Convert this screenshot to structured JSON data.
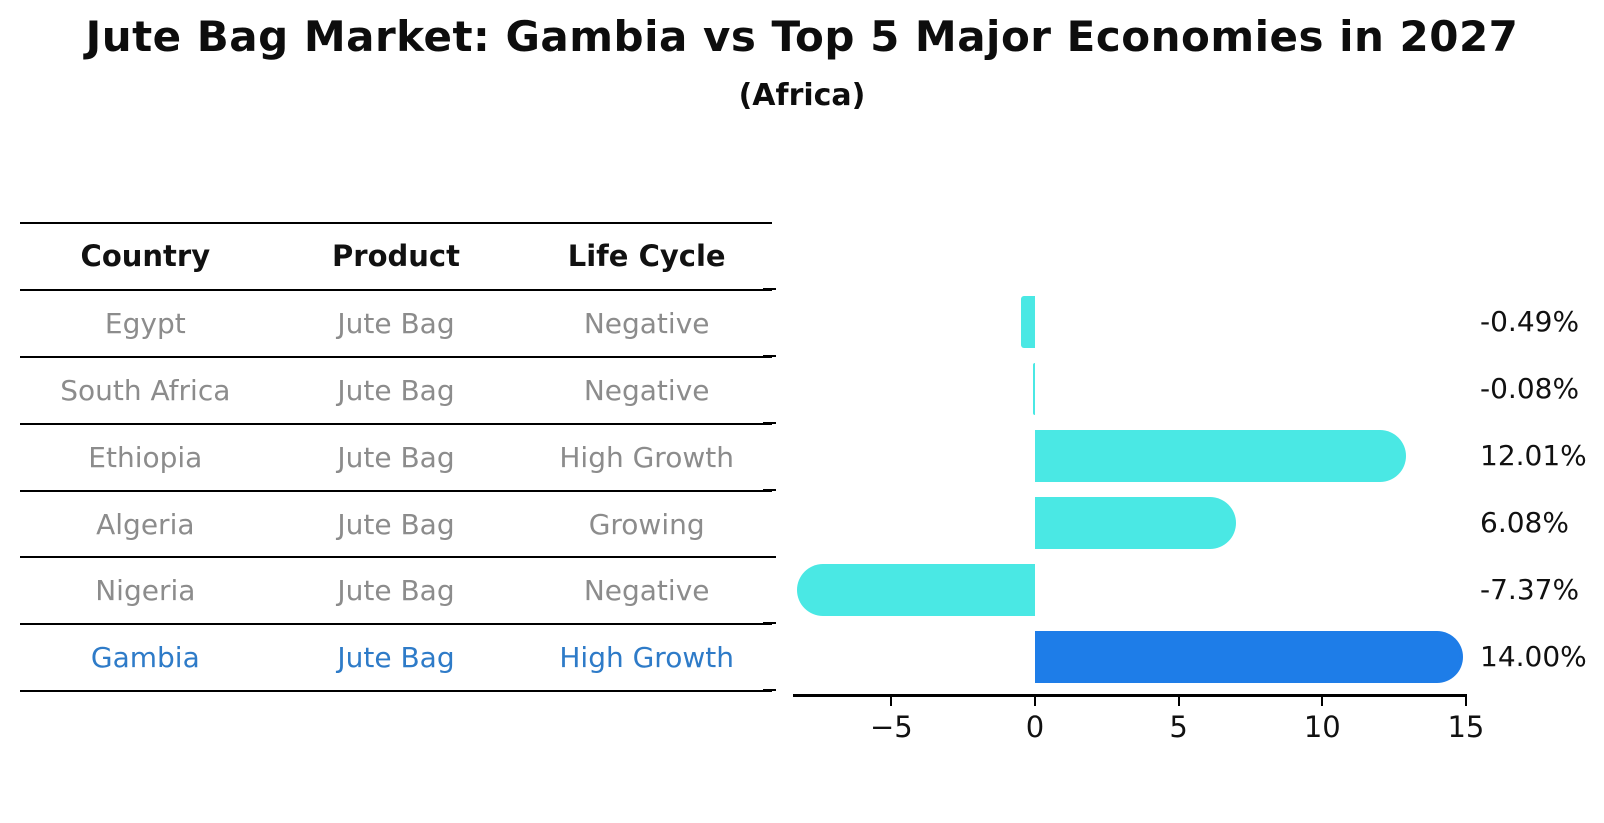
{
  "title": "Jute Bag Market: Gambia vs Top 5 Major Economies in 2027",
  "subtitle": "(Africa)",
  "table": {
    "headers": [
      "Country",
      "Product",
      "Life Cycle"
    ],
    "rows": [
      {
        "country": "Egypt",
        "product": "Jute Bag",
        "life_cycle": "Negative",
        "highlight": false
      },
      {
        "country": "South Africa",
        "product": "Jute Bag",
        "life_cycle": "Negative",
        "highlight": false
      },
      {
        "country": "Ethiopia",
        "product": "Jute Bag",
        "life_cycle": "High Growth",
        "highlight": false
      },
      {
        "country": "Algeria",
        "product": "Jute Bag",
        "life_cycle": "Growing",
        "highlight": false
      },
      {
        "country": "Nigeria",
        "product": "Jute Bag",
        "life_cycle": "Negative",
        "highlight": false
      },
      {
        "country": "Gambia",
        "product": "Jute Bag",
        "life_cycle": "High Growth",
        "highlight": true
      }
    ]
  },
  "chart_data": {
    "type": "bar",
    "orientation": "horizontal",
    "title": "Jute Bag Market: Gambia vs Top 5 Major Economies in 2027",
    "subtitle": "(Africa)",
    "categories": [
      "Egypt",
      "South Africa",
      "Ethiopia",
      "Algeria",
      "Nigeria",
      "Gambia"
    ],
    "values": [
      -0.49,
      -0.08,
      12.01,
      6.08,
      -7.37,
      14.0
    ],
    "value_labels": [
      "-0.49%",
      "-0.08%",
      "12.01%",
      "6.08%",
      "-7.37%",
      "14.00%"
    ],
    "highlight_index": 5,
    "xticks": [
      -5,
      0,
      5,
      10,
      15
    ],
    "xtick_labels": [
      "−5",
      "0",
      "5",
      "10",
      "15"
    ],
    "xlim": [
      -8.4,
      15.05
    ],
    "grid": false,
    "legend": "none",
    "colors": {
      "bar_default": "#4ae8e4",
      "bar_highlight": "#1e7de8",
      "highlight_text": "#2e7bc8",
      "row_text": "#8c8c8c",
      "axis_text": "#111111"
    }
  }
}
